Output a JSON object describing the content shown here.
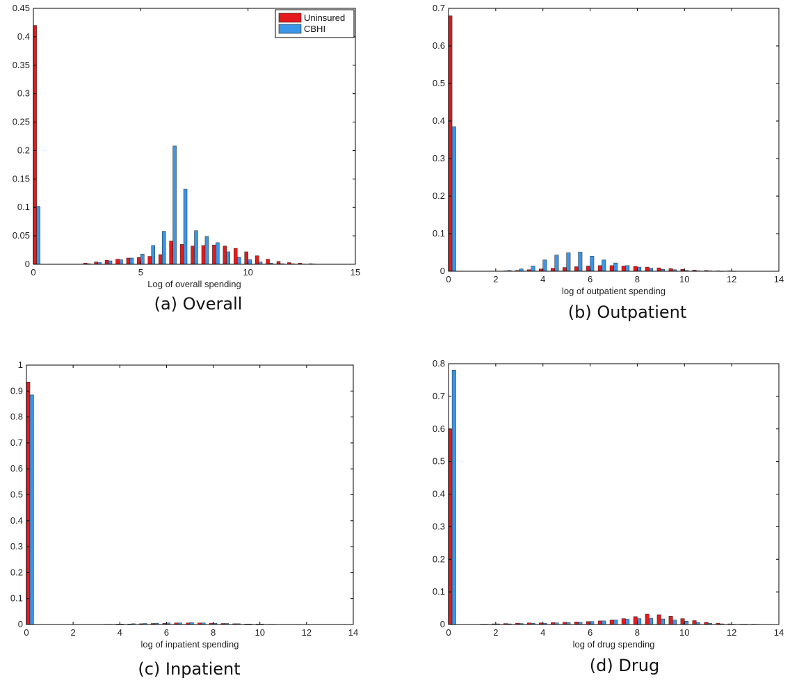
{
  "legend_entries": [
    "Uninsured",
    "CBHI"
  ],
  "series_colors": {
    "Uninsured": "#e41a1c",
    "CBHI": "#3a96e6"
  },
  "chart_data": [
    {
      "type": "bar",
      "caption_tag": "(a)",
      "caption_name": "Overall",
      "xlabel": "Log of overall spending",
      "ylabel": "",
      "xlim": [
        0,
        15
      ],
      "ylim": [
        0,
        0.45
      ],
      "xticks": [
        0,
        5,
        10,
        15
      ],
      "yticks": [
        0,
        0.05,
        0.1,
        0.15,
        0.2,
        0.25,
        0.3,
        0.35,
        0.4,
        0.45
      ],
      "legend": "top-right",
      "grid": false,
      "x": [
        0.15,
        2.5,
        3.0,
        3.5,
        4.0,
        4.5,
        5.0,
        5.5,
        6.0,
        6.5,
        7.0,
        7.5,
        8.0,
        8.5,
        9.0,
        9.5,
        10.0,
        10.5,
        11.0,
        11.5,
        12.0,
        12.5,
        13.0
      ],
      "series": [
        {
          "name": "Uninsured",
          "values": [
            0.42,
            0.002,
            0.004,
            0.007,
            0.009,
            0.011,
            0.012,
            0.014,
            0.017,
            0.041,
            0.035,
            0.032,
            0.033,
            0.034,
            0.032,
            0.028,
            0.022,
            0.015,
            0.009,
            0.005,
            0.003,
            0.002,
            0.001
          ]
        },
        {
          "name": "CBHI",
          "values": [
            0.102,
            0.001,
            0.003,
            0.006,
            0.008,
            0.011,
            0.018,
            0.033,
            0.058,
            0.208,
            0.132,
            0.059,
            0.049,
            0.038,
            0.022,
            0.012,
            0.008,
            0.004,
            0.002,
            0.001,
            0.001,
            0.0005,
            0.0005
          ]
        }
      ]
    },
    {
      "type": "bar",
      "caption_tag": "(b)",
      "caption_name": "Outpatient",
      "xlabel": "log of outpatient spending",
      "ylabel": "",
      "xlim": [
        0,
        14
      ],
      "ylim": [
        0,
        0.7
      ],
      "xticks": [
        0,
        2,
        4,
        6,
        8,
        10,
        12,
        14
      ],
      "yticks": [
        0,
        0.1,
        0.2,
        0.3,
        0.4,
        0.5,
        0.6,
        0.7
      ],
      "legend": "none",
      "grid": false,
      "x": [
        0.15,
        2.5,
        3.0,
        3.5,
        4.0,
        4.5,
        5.0,
        5.5,
        6.0,
        6.5,
        7.0,
        7.5,
        8.0,
        8.5,
        9.0,
        9.5,
        10.0,
        10.5,
        11.0,
        11.5,
        12.0
      ],
      "series": [
        {
          "name": "Uninsured",
          "values": [
            0.68,
            0.001,
            0.002,
            0.004,
            0.006,
            0.008,
            0.01,
            0.012,
            0.014,
            0.015,
            0.015,
            0.014,
            0.013,
            0.011,
            0.009,
            0.007,
            0.005,
            0.003,
            0.002,
            0.001,
            0.001
          ]
        },
        {
          "name": "CBHI",
          "values": [
            0.385,
            0.002,
            0.006,
            0.014,
            0.03,
            0.043,
            0.049,
            0.051,
            0.04,
            0.03,
            0.022,
            0.015,
            0.011,
            0.008,
            0.005,
            0.004,
            0.002,
            0.001,
            0.001,
            0.0005,
            0.0005
          ]
        }
      ]
    },
    {
      "type": "bar",
      "caption_tag": "(c)",
      "caption_name": "Inpatient",
      "xlabel": "log of inpatient spending",
      "ylabel": "",
      "xlim": [
        0,
        14
      ],
      "ylim": [
        0,
        1
      ],
      "xticks": [
        0,
        2,
        4,
        6,
        8,
        10,
        12,
        14
      ],
      "yticks": [
        0,
        0.1,
        0.2,
        0.3,
        0.4,
        0.5,
        0.6,
        0.7,
        0.8,
        0.9,
        1
      ],
      "legend": "none",
      "grid": false,
      "x": [
        0.15,
        3.5,
        4.0,
        4.5,
        5.0,
        5.5,
        6.0,
        6.5,
        7.0,
        7.5,
        8.0,
        8.5,
        9.0,
        9.5,
        10.0,
        10.5
      ],
      "series": [
        {
          "name": "Uninsured",
          "values": [
            0.935,
            0.001,
            0.002,
            0.002,
            0.003,
            0.004,
            0.005,
            0.006,
            0.006,
            0.006,
            0.005,
            0.004,
            0.003,
            0.002,
            0.002,
            0.001
          ]
        },
        {
          "name": "CBHI",
          "values": [
            0.885,
            0.001,
            0.002,
            0.003,
            0.004,
            0.005,
            0.006,
            0.006,
            0.007,
            0.006,
            0.005,
            0.004,
            0.003,
            0.002,
            0.002,
            0.001
          ]
        }
      ]
    },
    {
      "type": "bar",
      "caption_tag": "(d)",
      "caption_name": "Drug",
      "xlabel": "log of drug spending",
      "ylabel": "",
      "xlim": [
        0,
        14
      ],
      "ylim": [
        0,
        0.8
      ],
      "xticks": [
        0,
        2,
        4,
        6,
        8,
        10,
        12,
        14
      ],
      "yticks": [
        0,
        0.1,
        0.2,
        0.3,
        0.4,
        0.5,
        0.6,
        0.7,
        0.8
      ],
      "legend": "none",
      "grid": false,
      "x": [
        0.15,
        1.5,
        2.0,
        2.5,
        3.0,
        3.5,
        4.0,
        4.5,
        5.0,
        5.5,
        6.0,
        6.5,
        7.0,
        7.5,
        8.0,
        8.5,
        9.0,
        9.5,
        10.0,
        10.5,
        11.0,
        11.5,
        12.0,
        12.5,
        13.0
      ],
      "series": [
        {
          "name": "Uninsured",
          "values": [
            0.6,
            0.001,
            0.002,
            0.003,
            0.004,
            0.005,
            0.005,
            0.006,
            0.007,
            0.008,
            0.009,
            0.011,
            0.014,
            0.018,
            0.024,
            0.032,
            0.03,
            0.025,
            0.018,
            0.012,
            0.007,
            0.004,
            0.002,
            0.001,
            0.001
          ]
        },
        {
          "name": "CBHI",
          "values": [
            0.78,
            0.001,
            0.002,
            0.002,
            0.003,
            0.004,
            0.004,
            0.005,
            0.006,
            0.007,
            0.009,
            0.011,
            0.014,
            0.016,
            0.018,
            0.019,
            0.017,
            0.014,
            0.01,
            0.006,
            0.004,
            0.002,
            0.001,
            0.001,
            0.0005
          ]
        }
      ]
    }
  ]
}
